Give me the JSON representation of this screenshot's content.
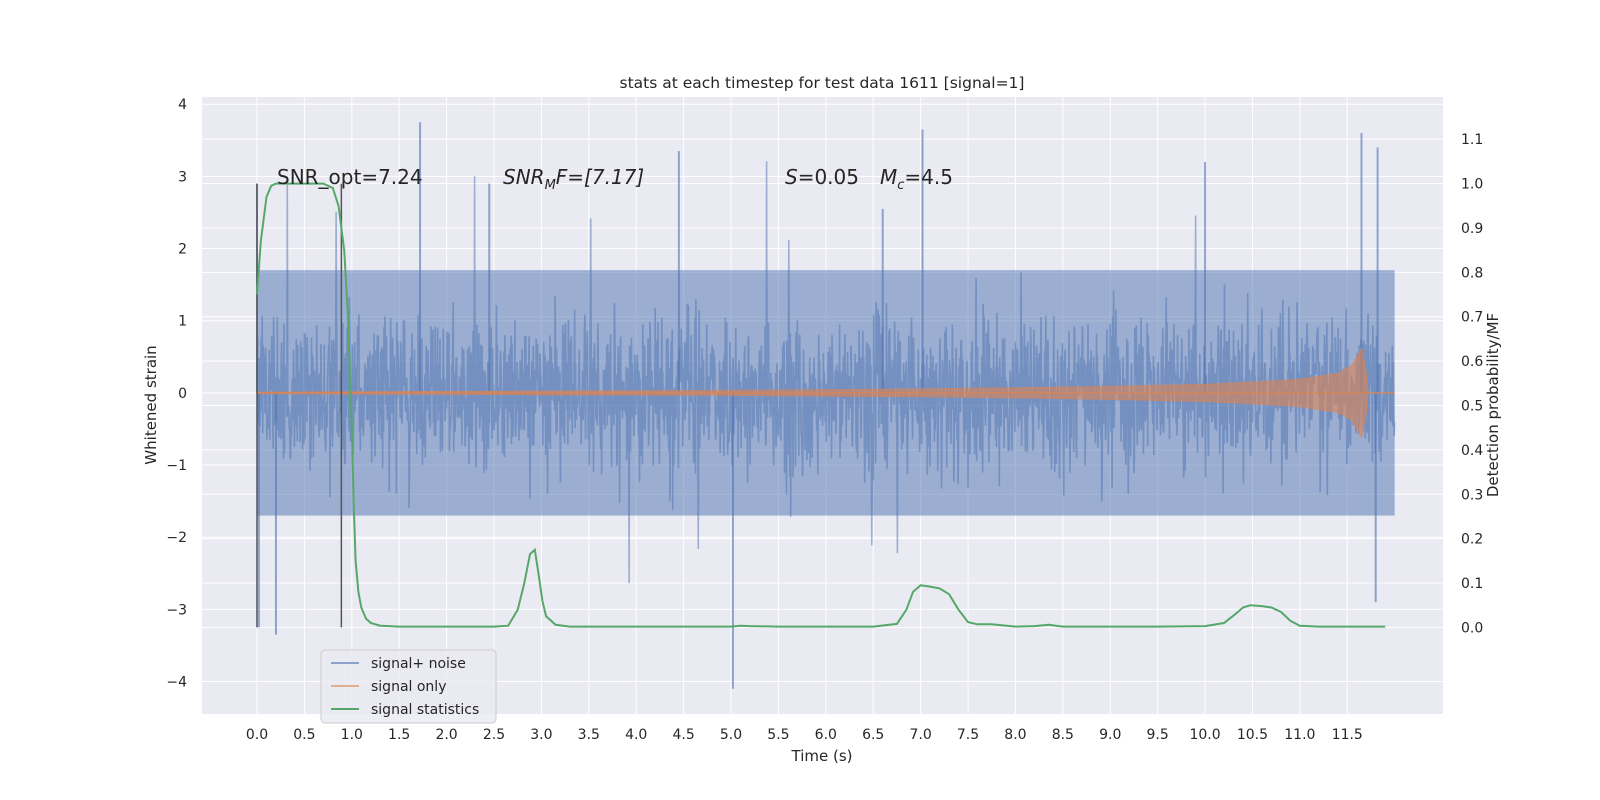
{
  "chart_data": {
    "type": "line",
    "title": "stats at each timestep for test data 1611 [signal=1]",
    "xlabel": "Time (s)",
    "ylabel": "Whitened strain",
    "y2label": "Detection probability/MF",
    "xlim": [
      -0.58,
      12.51
    ],
    "ylim": [
      -4.45,
      4.1
    ],
    "y2lim": [
      -0.195,
      1.195
    ],
    "x_ticks": [
      "0.0",
      "0.5",
      "1.0",
      "1.5",
      "2.0",
      "2.5",
      "3.0",
      "3.5",
      "4.0",
      "4.5",
      "5.0",
      "5.5",
      "6.0",
      "6.5",
      "7.0",
      "7.5",
      "8.0",
      "8.5",
      "9.0",
      "9.5",
      "10.0",
      "10.5",
      "11.0",
      "11.5"
    ],
    "y_ticks": [
      "4",
      "3",
      "2",
      "1",
      "0",
      "−1",
      "−2",
      "−3",
      "−4"
    ],
    "y2_ticks": [
      "1.1",
      "1.0",
      "0.9",
      "0.8",
      "0.7",
      "0.6",
      "0.5",
      "0.4",
      "0.3",
      "0.2",
      "0.1",
      "0.0"
    ],
    "grid": true,
    "legend_position": "lower-left",
    "annotations": {
      "snr_opt": "SNR_opt=7.24",
      "snr_mf_base": "SNR",
      "snr_mf_sub": "M",
      "snr_mf_rest": "F=[7.17]",
      "s_var": "S",
      "s_val": "=0.05",
      "mc_var": "M",
      "mc_sub": "c",
      "mc_val": "=4.5"
    },
    "vertical_markers_s": [
      0.0,
      0.89
    ],
    "series": [
      {
        "name": "signal+ noise",
        "color": "#4c72b0",
        "axis": "left",
        "time_range": [
          0.0,
          12.0
        ],
        "core_band": [
          -1.7,
          1.7
        ],
        "peaks": [
          [
            0.0,
            2.9
          ],
          [
            0.02,
            -3.25
          ],
          [
            0.2,
            -3.35
          ],
          [
            1.72,
            3.75
          ],
          [
            2.45,
            2.9
          ],
          [
            4.45,
            3.35
          ],
          [
            5.02,
            -4.1
          ],
          [
            6.6,
            2.55
          ],
          [
            7.02,
            3.65
          ],
          [
            10.0,
            3.2
          ],
          [
            11.65,
            3.6
          ],
          [
            11.82,
            3.4
          ],
          [
            11.8,
            -2.9
          ]
        ]
      },
      {
        "name": "signal only",
        "color": "#dd8452",
        "axis": "left",
        "time_range": [
          0.0,
          12.0
        ],
        "envelope": [
          [
            0.0,
            0.01
          ],
          [
            1.0,
            0.015
          ],
          [
            2.0,
            0.02
          ],
          [
            3.0,
            0.025
          ],
          [
            4.0,
            0.03
          ],
          [
            5.0,
            0.035
          ],
          [
            6.0,
            0.045
          ],
          [
            7.0,
            0.055
          ],
          [
            8.0,
            0.07
          ],
          [
            9.0,
            0.09
          ],
          [
            10.0,
            0.12
          ],
          [
            10.5,
            0.15
          ],
          [
            11.0,
            0.19
          ],
          [
            11.4,
            0.27
          ],
          [
            11.55,
            0.38
          ],
          [
            11.65,
            0.62
          ],
          [
            11.7,
            0.3
          ],
          [
            11.72,
            0.0
          ],
          [
            12.0,
            0.0
          ]
        ]
      },
      {
        "name": "signal statistics",
        "color": "#55a868",
        "axis": "right",
        "x": [
          0.0,
          0.04,
          0.1,
          0.15,
          0.2,
          0.3,
          0.4,
          0.5,
          0.6,
          0.7,
          0.8,
          0.86,
          0.92,
          0.96,
          1.0,
          1.02,
          1.04,
          1.07,
          1.1,
          1.15,
          1.2,
          1.3,
          1.5,
          2.0,
          2.5,
          2.65,
          2.75,
          2.82,
          2.88,
          2.93,
          2.97,
          3.01,
          3.05,
          3.15,
          3.3,
          3.5,
          4.0,
          4.5,
          5.0,
          5.1,
          5.2,
          5.5,
          6.0,
          6.5,
          6.75,
          6.85,
          6.92,
          7.0,
          7.1,
          7.2,
          7.3,
          7.4,
          7.5,
          7.6,
          7.75,
          8.0,
          8.2,
          8.35,
          8.5,
          9.0,
          9.5,
          10.0,
          10.2,
          10.32,
          10.4,
          10.48,
          10.6,
          10.7,
          10.8,
          10.9,
          11.0,
          11.2,
          11.5,
          11.9
        ],
        "y": [
          0.75,
          0.87,
          0.97,
          0.995,
          1.0,
          1.0,
          1.0,
          1.0,
          1.0,
          1.0,
          0.99,
          0.95,
          0.85,
          0.7,
          0.45,
          0.28,
          0.15,
          0.08,
          0.045,
          0.02,
          0.01,
          0.004,
          0.002,
          0.002,
          0.002,
          0.004,
          0.04,
          0.1,
          0.165,
          0.175,
          0.12,
          0.06,
          0.025,
          0.006,
          0.002,
          0.002,
          0.002,
          0.002,
          0.002,
          0.004,
          0.003,
          0.002,
          0.002,
          0.002,
          0.008,
          0.04,
          0.08,
          0.095,
          0.092,
          0.088,
          0.075,
          0.04,
          0.012,
          0.007,
          0.007,
          0.002,
          0.003,
          0.006,
          0.002,
          0.002,
          0.002,
          0.003,
          0.01,
          0.03,
          0.045,
          0.05,
          0.048,
          0.045,
          0.035,
          0.015,
          0.004,
          0.002,
          0.002,
          0.002
        ]
      }
    ]
  }
}
